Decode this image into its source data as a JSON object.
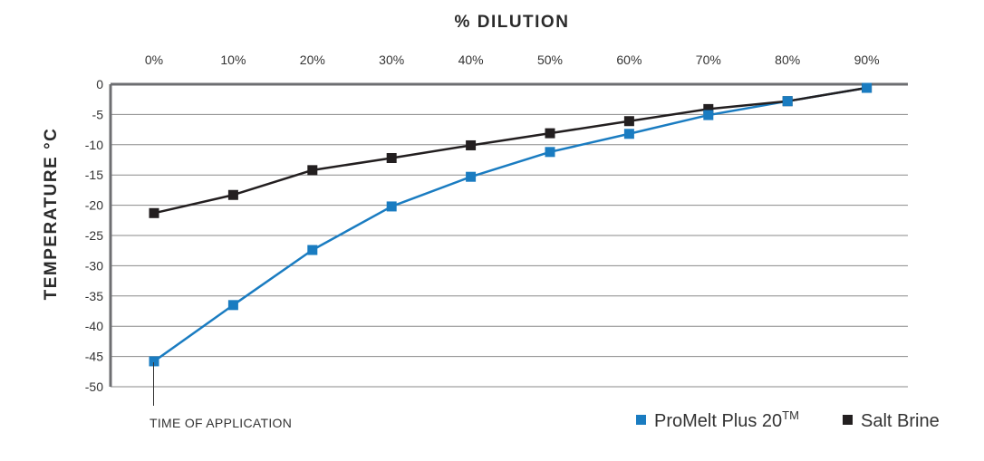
{
  "chart_data": {
    "type": "line",
    "title": "",
    "xlabel": "% DILUTION",
    "ylabel": "TEMPERATURE °C",
    "x_axis_position": "top",
    "categories": [
      "0%",
      "10%",
      "20%",
      "30%",
      "40%",
      "50%",
      "60%",
      "70%",
      "80%",
      "90%"
    ],
    "y_ticks": [
      "0",
      "-5",
      "-10",
      "-15",
      "-20",
      "-25",
      "-30",
      "-35",
      "-40",
      "-45",
      "-50"
    ],
    "ylim": [
      -50,
      0
    ],
    "grid": true,
    "legend_position": "bottom-right",
    "series": [
      {
        "name": "ProMelt Plus 20",
        "name_superscript": "TM",
        "color": "#1a7cc1",
        "values": [
          -45.8,
          -36.5,
          -27.4,
          -20.2,
          -15.3,
          -11.2,
          -8.2,
          -5.1,
          -2.8,
          -0.6
        ]
      },
      {
        "name": "Salt Brine",
        "color": "#231f20",
        "values": [
          -21.3,
          -18.3,
          -14.2,
          -12.2,
          -10.1,
          -8.1,
          -6.1,
          -4.1,
          -2.8,
          -0.6
        ]
      }
    ],
    "annotations": [
      {
        "text": "TIME OF APPLICATION",
        "x": "0%"
      }
    ]
  }
}
